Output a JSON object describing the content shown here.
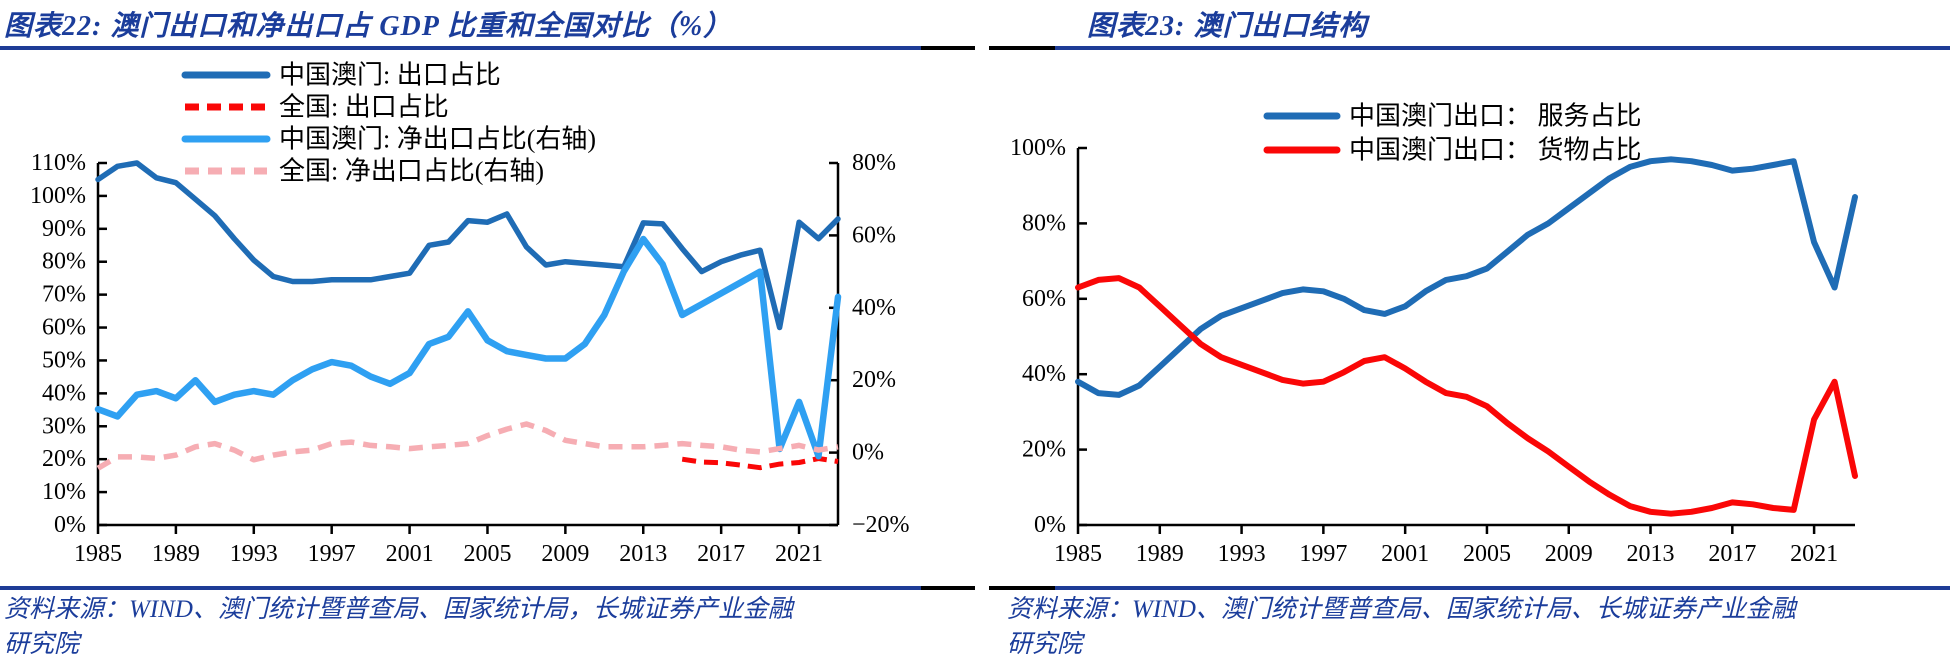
{
  "colors": {
    "title_blue": "#1B3D9B",
    "rule_blue": "#1E3C96",
    "rule_black": "#000000",
    "macau_export_blue": "#1F6CB5",
    "macau_net_export_lightblue": "#2FA0F2",
    "national_export_red": "#FA0707",
    "national_net_export_pink": "#F6ADB3",
    "services_blue": "#1F6CB5",
    "goods_red": "#FA0707"
  },
  "figures": [
    {
      "id": "fig22",
      "title": "图表22:  澳门出口和净出口占 GDP 比重和全国对比（%）",
      "source": [
        "资料来源：WIND、澳门统计暨普查局、国家统计局，长城证券产业金融",
        "研究院"
      ]
    },
    {
      "id": "fig23",
      "title": "图表23:  澳门出口结构",
      "source": [
        "资料来源：WIND、澳门统计暨普查局、国家统计局、长城证券产业金融",
        "研究院"
      ]
    }
  ],
  "chart_data": [
    {
      "type": "line",
      "title": "澳门出口和净出口占 GDP 比重和全国对比（%）",
      "x": [
        1985,
        1986,
        1987,
        1988,
        1989,
        1990,
        1991,
        1992,
        1993,
        1994,
        1995,
        1996,
        1997,
        1998,
        1999,
        2000,
        2001,
        2002,
        2003,
        2004,
        2005,
        2006,
        2007,
        2008,
        2009,
        2010,
        2011,
        2012,
        2013,
        2014,
        2015,
        2016,
        2017,
        2018,
        2019,
        2020,
        2021,
        2022,
        2023
      ],
      "x_ticks": [
        1985,
        1989,
        1993,
        1997,
        2001,
        2005,
        2009,
        2013,
        2017,
        2021
      ],
      "axes": {
        "left": {
          "min": 0,
          "max": 110,
          "step": 10,
          "unit": "%"
        },
        "right": {
          "min": -20,
          "max": 80,
          "step": 20,
          "unit": "%"
        }
      },
      "grid": false,
      "legend_position": "top-left-stacked",
      "series": [
        {
          "name": "中国澳门: 出口占比",
          "axis": "left",
          "color": "#1F6CB5",
          "dash": null,
          "width": 5.5,
          "values": [
            105,
            109,
            110,
            105.5,
            104,
            99,
            94,
            87,
            80.5,
            75.5,
            74,
            74,
            74.5,
            74.5,
            74.5,
            75.5,
            76.5,
            85,
            86,
            92.5,
            92,
            94.5,
            84.5,
            79,
            80,
            79.5,
            79,
            78.5,
            91.8,
            91.5,
            84,
            77,
            80,
            82,
            83.5,
            60,
            92,
            87,
            93
          ]
        },
        {
          "name": "全国: 出口占比",
          "axis": "left",
          "color": "#FA0707",
          "dash": "14 8",
          "width": 5,
          "values": [
            null,
            null,
            null,
            null,
            null,
            null,
            null,
            null,
            null,
            null,
            null,
            null,
            null,
            null,
            null,
            null,
            null,
            null,
            null,
            null,
            null,
            null,
            null,
            null,
            null,
            null,
            null,
            null,
            null,
            null,
            20,
            19.1,
            18.9,
            18.2,
            17.4,
            18.5,
            19,
            20.2,
            19.3
          ]
        },
        {
          "name": "中国澳门: 净出口占比(右轴)",
          "axis": "right",
          "color": "#2FA0F2",
          "dash": null,
          "width": 6.5,
          "values": [
            12,
            10,
            16,
            17,
            15,
            20,
            14,
            16,
            17,
            16,
            20,
            23,
            25,
            24,
            21,
            19,
            22,
            30,
            32,
            39,
            31,
            28,
            27,
            26,
            26,
            30,
            38,
            50,
            59,
            52,
            38,
            41,
            44,
            47,
            50,
            1,
            14,
            -1,
            43
          ]
        },
        {
          "name": "全国: 净出口占比(右轴)",
          "axis": "right",
          "color": "#F6ADB3",
          "dash": "14 9",
          "width": 5.5,
          "values": [
            -4.3,
            -1.2,
            -1.2,
            -1.6,
            -0.7,
            1.6,
            2.5,
            0.7,
            -2,
            -0.7,
            0.2,
            0.7,
            2.5,
            2.9,
            2,
            1.6,
            1.1,
            1.6,
            2,
            2.5,
            4.7,
            6.5,
            7.9,
            6.1,
            3.4,
            2.5,
            1.6,
            1.6,
            1.6,
            2,
            2.5,
            2,
            1.6,
            0.7,
            0.2,
            1.1,
            2,
            0.7,
            1.6
          ]
        }
      ]
    },
    {
      "type": "line",
      "title": "澳门出口结构",
      "x": [
        1985,
        1986,
        1987,
        1988,
        1989,
        1990,
        1991,
        1992,
        1993,
        1994,
        1995,
        1996,
        1997,
        1998,
        1999,
        2000,
        2001,
        2002,
        2003,
        2004,
        2005,
        2006,
        2007,
        2008,
        2009,
        2010,
        2011,
        2012,
        2013,
        2014,
        2015,
        2016,
        2017,
        2018,
        2019,
        2020,
        2021,
        2022,
        2023
      ],
      "x_ticks": [
        1985,
        1989,
        1993,
        1997,
        2001,
        2005,
        2009,
        2013,
        2017,
        2021
      ],
      "axes": {
        "left": {
          "min": 0,
          "max": 100,
          "step": 20,
          "unit": "%"
        }
      },
      "grid": false,
      "legend_position": "top-center-stacked",
      "series": [
        {
          "name": "中国澳门出口： 服务占比",
          "axis": "left",
          "color": "#1F6CB5",
          "dash": null,
          "width": 6,
          "values": [
            38,
            35,
            34.5,
            37,
            42,
            47,
            52,
            55.5,
            57.5,
            59.5,
            61.5,
            62.5,
            62,
            60,
            57,
            56,
            58,
            62,
            65,
            66,
            68,
            72.5,
            77,
            80,
            84,
            88,
            92,
            95,
            96.5,
            97,
            96.5,
            95.5,
            94,
            94.5,
            95.5,
            96.5,
            75,
            63,
            87
          ]
        },
        {
          "name": "中国澳门出口： 货物占比",
          "axis": "left",
          "color": "#FA0707",
          "dash": null,
          "width": 6,
          "values": [
            63,
            65,
            65.5,
            63,
            58,
            53,
            48,
            44.5,
            42.5,
            40.5,
            38.5,
            37.5,
            38,
            40.5,
            43.5,
            44.5,
            41.5,
            38,
            35,
            34,
            31.5,
            27,
            23,
            19.5,
            15.5,
            11.5,
            8,
            5,
            3.5,
            3,
            3.5,
            4.5,
            6,
            5.5,
            4.5,
            4,
            28,
            38,
            13
          ]
        }
      ]
    }
  ]
}
